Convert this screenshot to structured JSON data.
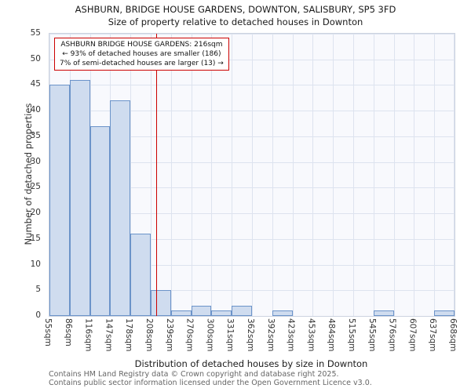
{
  "header": {
    "title": "ASHBURN, BRIDGE HOUSE GARDENS, DOWNTON, SALISBURY, SP5 3FD",
    "subtitle": "Size of property relative to detached houses in Downton"
  },
  "chart_data": {
    "type": "bar",
    "title": "ASHBURN, BRIDGE HOUSE GARDENS, DOWNTON, SALISBURY, SP5 3FD",
    "subtitle": "Size of property relative to detached houses in Downton",
    "categories": [
      "55sqm",
      "86sqm",
      "116sqm",
      "147sqm",
      "178sqm",
      "208sqm",
      "239sqm",
      "270sqm",
      "300sqm",
      "331sqm",
      "362sqm",
      "392sqm",
      "423sqm",
      "453sqm",
      "484sqm",
      "515sqm",
      "545sqm",
      "576sqm",
      "607sqm",
      "637sqm",
      "668sqm"
    ],
    "values": [
      45,
      46,
      37,
      42,
      16,
      5,
      1,
      2,
      1,
      2,
      0,
      1,
      0,
      0,
      0,
      0,
      1,
      0,
      0,
      1
    ],
    "ylabel": "Number of detached properties",
    "xlabel": "Distribution of detached houses by size in Downton",
    "ylim": [
      0,
      55
    ],
    "ytick_step": 5,
    "grid": "on",
    "marker": {
      "label_sqm": "216sqm",
      "bin_index": 5,
      "bin_fraction": 0.258
    },
    "annotation": {
      "line1": "ASHBURN BRIDGE HOUSE GARDENS: 216sqm",
      "line2": "← 93% of detached houses are smaller (186)",
      "line3": "7% of semi-detached houses are larger (13) →"
    },
    "colors": {
      "bar_fill": "#cfdcef",
      "bar_border": "#6b93c9",
      "marker_line": "#cc0000",
      "gridline": "#dde3ef",
      "plot_bg": "#f8f9fd"
    }
  },
  "footer": {
    "line1": "Contains HM Land Registry data © Crown copyright and database right 2025.",
    "line2": "Contains public sector information licensed under the Open Government Licence v3.0."
  }
}
